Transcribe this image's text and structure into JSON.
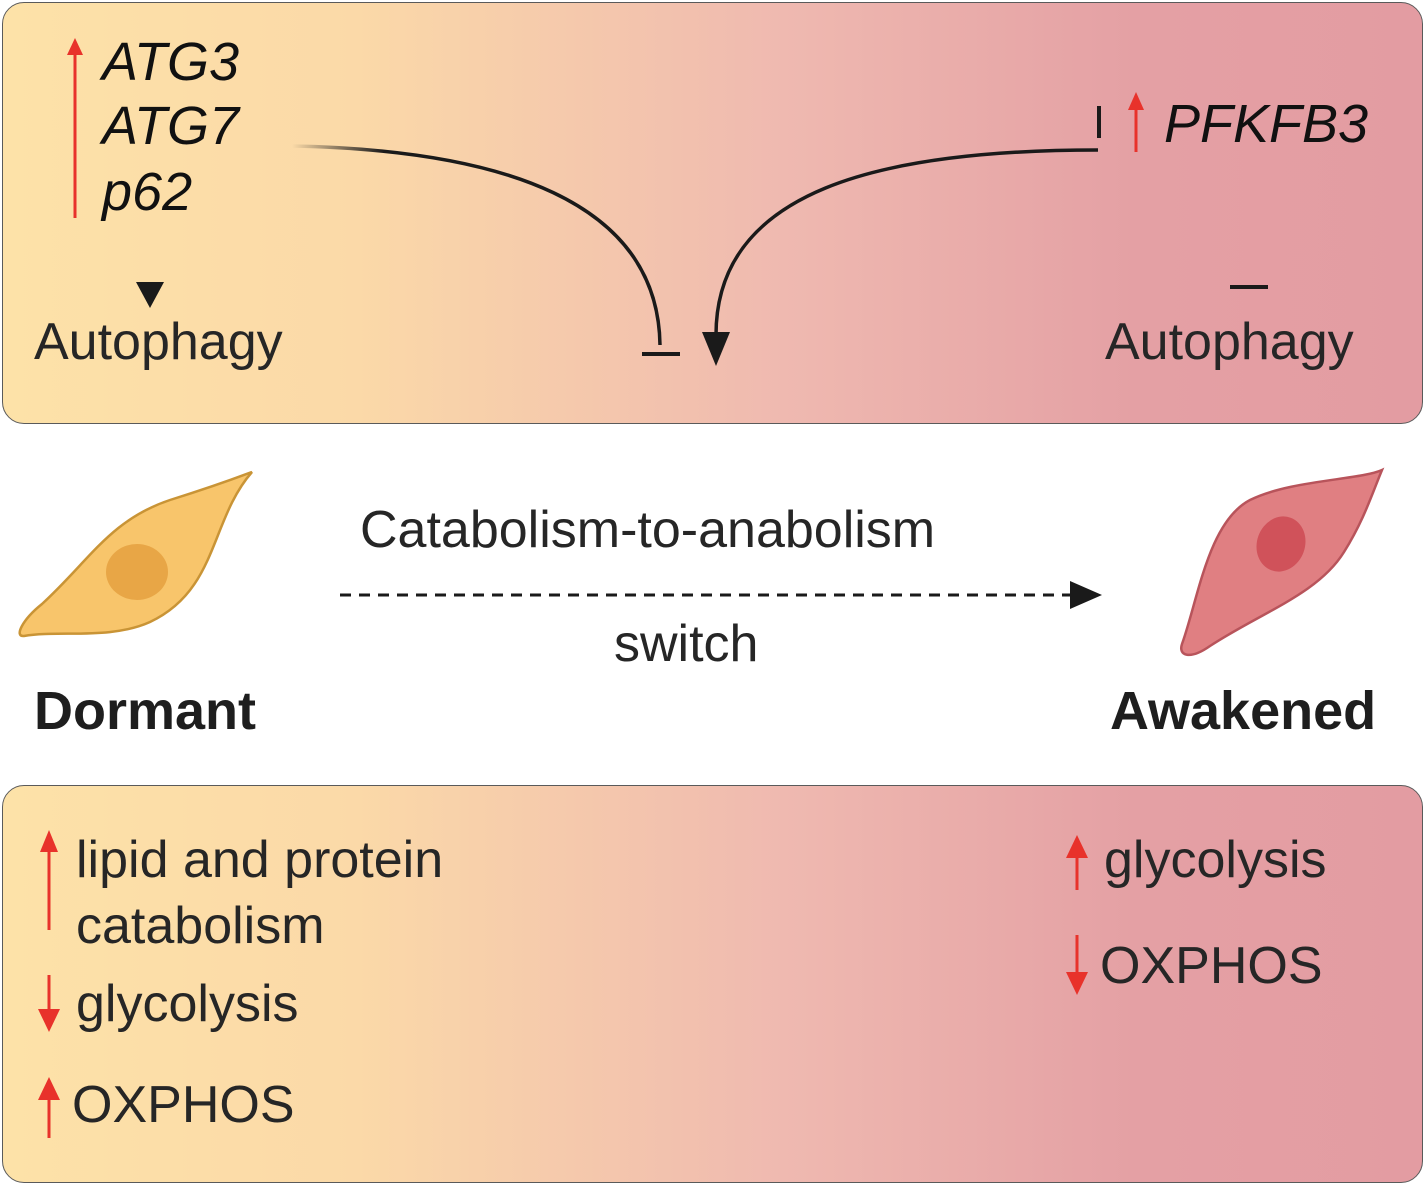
{
  "top": {
    "genes": [
      "ATG3",
      "ATG7",
      "p62"
    ],
    "left_autophagy": "Autophagy",
    "pfkfb3": "PFKFB3",
    "right_autophagy": "Autophagy"
  },
  "middle": {
    "switch_line1": "Catabolism-to-anabolism",
    "switch_line2": "switch",
    "dormant": "Dormant",
    "awakened": "Awakened"
  },
  "bottom": {
    "left": {
      "item1_line1": "lipid and protein",
      "item1_line2": "catabolism",
      "item2": "glycolysis",
      "item3": "OXPHOS"
    },
    "right": {
      "item1": "glycolysis",
      "item2": "OXPHOS"
    }
  },
  "colors": {
    "up_arrow": "#e8322b",
    "down_arrow": "#e8322b",
    "dormant_cell": "#f8c56b",
    "dormant_nucleus": "#e8a646",
    "awakened_cell": "#e07f82",
    "awakened_nucleus": "#d0525a"
  }
}
